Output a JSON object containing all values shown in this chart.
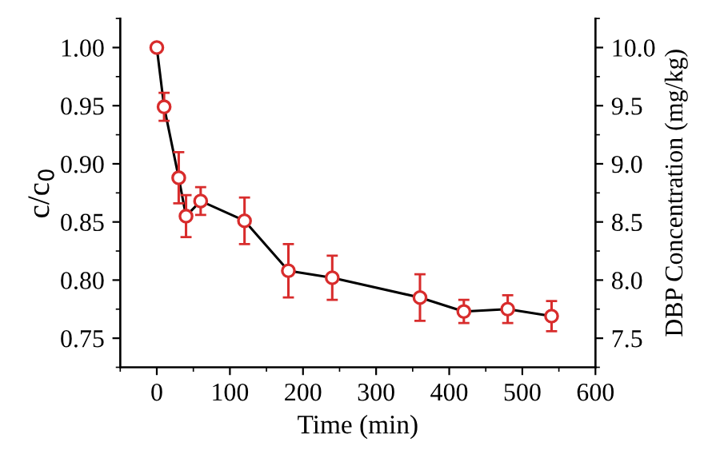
{
  "chart_data": {
    "type": "line",
    "xlabel": "Time (min)",
    "ylabel": "c/c$_{0}$",
    "y2label": "DBP Concentration (mg/kg)",
    "x": [
      0,
      10,
      30,
      40,
      60,
      120,
      180,
      240,
      360,
      420,
      480,
      540
    ],
    "series": [
      {
        "color": "#d82c2c",
        "values": [
          1.0,
          0.949,
          0.888,
          0.855,
          0.868,
          0.851,
          0.808,
          0.802,
          0.785,
          0.773,
          0.775,
          0.769
        ],
        "errors": [
          null,
          0.012,
          0.022,
          0.018,
          0.012,
          0.02,
          0.023,
          0.019,
          0.02,
          0.01,
          0.012,
          0.013
        ]
      }
    ],
    "marker": "circle",
    "line_style": "solid",
    "xlim": [
      -50,
      600
    ],
    "xticks": [
      0,
      100,
      200,
      300,
      400,
      500,
      600
    ],
    "ylim": [
      0.725,
      1.025
    ],
    "yticks": [
      {
        "value": 0.75,
        "label": "0.75"
      },
      {
        "value": 0.8,
        "label": "0.80"
      },
      {
        "value": 0.85,
        "label": "0.85"
      },
      {
        "value": 0.9,
        "label": "0.90"
      },
      {
        "value": 0.95,
        "label": "0.95"
      },
      {
        "value": 1.0,
        "label": "1.00"
      }
    ],
    "y2lim": [
      7.25,
      10.25
    ],
    "y2ticks": [
      7.5,
      {
        "value": 8,
        "label": "8.0"
      },
      8.5,
      {
        "value": 9,
        "label": "9.0"
      },
      9.5,
      {
        "value": 10,
        "label": "10.0"
      }
    ],
    "grid": false
  }
}
